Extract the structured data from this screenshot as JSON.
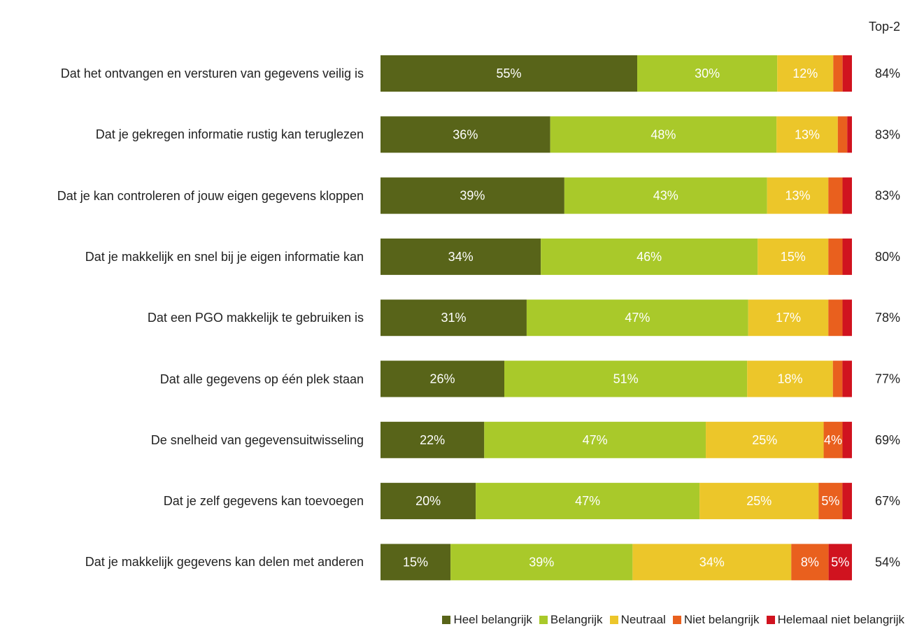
{
  "chart_data": {
    "type": "stacked_barh",
    "categories": [
      "Dat het ontvangen en versturen van gegevens veilig is",
      "Dat je gekregen informatie rustig kan teruglezen",
      "Dat je kan controleren of jouw eigen gegevens kloppen",
      "Dat je makkelijk en snel bij je eigen informatie kan",
      "Dat een PGO makkelijk te gebruiken is",
      "Dat alle gegevens op één plek staan",
      "De snelheid van gegevensuitwisseling",
      "Dat je zelf gegevens kan toevoegen",
      "Dat je makkelijk gegevens kan delen met anderen"
    ],
    "series": [
      {
        "name": "Heel belangrijk",
        "color": "#586419",
        "values": [
          55,
          36,
          39,
          34,
          31,
          26,
          22,
          20,
          15
        ],
        "value_labels": [
          "55%",
          "36%",
          "39%",
          "34%",
          "31%",
          "26%",
          "22%",
          "20%",
          "15%"
        ]
      },
      {
        "name": "Belangrijk",
        "color": "#a9c92a",
        "values": [
          30,
          48,
          43,
          46,
          47,
          51,
          47,
          47,
          39
        ],
        "value_labels": [
          "30%",
          "48%",
          "43%",
          "46%",
          "47%",
          "51%",
          "47%",
          "47%",
          "39%"
        ]
      },
      {
        "name": "Neutraal",
        "color": "#ecc62a",
        "values": [
          12,
          13,
          13,
          15,
          17,
          18,
          25,
          25,
          34
        ],
        "value_labels": [
          "12%",
          "13%",
          "13%",
          "15%",
          "17%",
          "18%",
          "25%",
          "25%",
          "34%"
        ]
      },
      {
        "name": "Niet belangrijk",
        "color": "#e9601e",
        "values": [
          2,
          2,
          3,
          3,
          3,
          2,
          4,
          5,
          8
        ],
        "value_labels": [
          null,
          null,
          null,
          null,
          null,
          null,
          "4%",
          "5%",
          "8%"
        ]
      },
      {
        "name": "Helemaal niet belangrijk",
        "color": "#d0131f",
        "values": [
          2,
          1,
          2,
          2,
          2,
          2,
          2,
          2,
          5
        ],
        "value_labels": [
          null,
          null,
          null,
          null,
          null,
          null,
          null,
          null,
          "5%"
        ]
      }
    ],
    "top2": {
      "label": "Top-2",
      "values": [
        84,
        83,
        83,
        80,
        78,
        77,
        69,
        67,
        54
      ],
      "value_labels": [
        "84%",
        "83%",
        "83%",
        "80%",
        "78%",
        "77%",
        "69%",
        "67%",
        "54%"
      ]
    }
  }
}
